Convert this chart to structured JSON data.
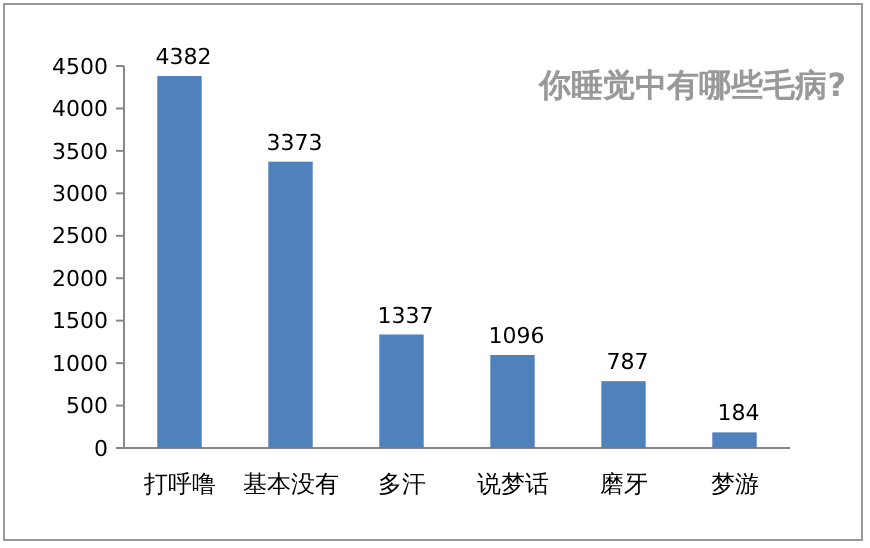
{
  "chart_data": {
    "type": "bar",
    "title": "你睡觉中有哪些毛病?",
    "categories": [
      "打呼噜",
      "基本没有",
      "多汗",
      "说梦话",
      "磨牙",
      "梦游"
    ],
    "values": [
      4382,
      3373,
      1337,
      1096,
      787,
      184
    ],
    "color": "#4f81bd",
    "ylim": [
      0,
      4500
    ],
    "yticks": [
      0,
      500,
      1000,
      1500,
      2000,
      2500,
      3000,
      3500,
      4000,
      4500
    ],
    "data_labels": true
  }
}
